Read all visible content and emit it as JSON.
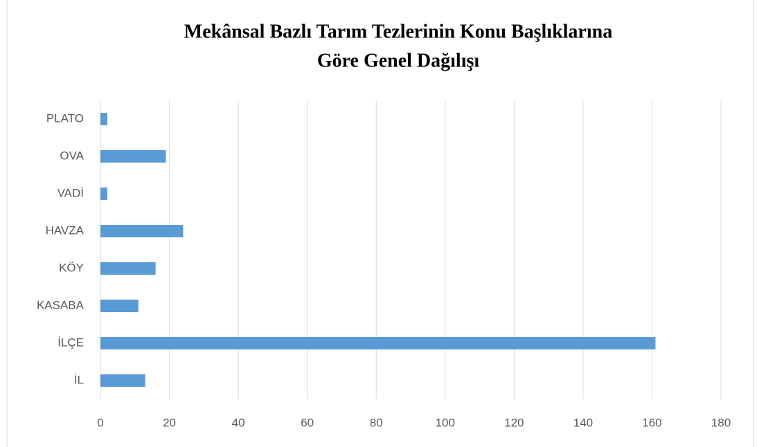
{
  "chart_data": {
    "type": "bar",
    "orientation": "horizontal",
    "title": [
      "Mekânsal Bazlı Tarım Tezlerinin Konu Başlıklarına",
      "Göre Genel Dağılışı"
    ],
    "categories": [
      "PLATO",
      "OVA",
      "VADİ",
      "HAVZA",
      "KÖY",
      "KASABA",
      "İLÇE",
      "İL"
    ],
    "values": [
      2,
      19,
      2,
      24,
      16,
      11,
      161,
      13
    ],
    "color": "#5b9bd5",
    "xlim": [
      0,
      180
    ],
    "xticks": [
      0,
      20,
      40,
      60,
      80,
      100,
      120,
      140,
      160,
      180
    ],
    "grid": true
  }
}
